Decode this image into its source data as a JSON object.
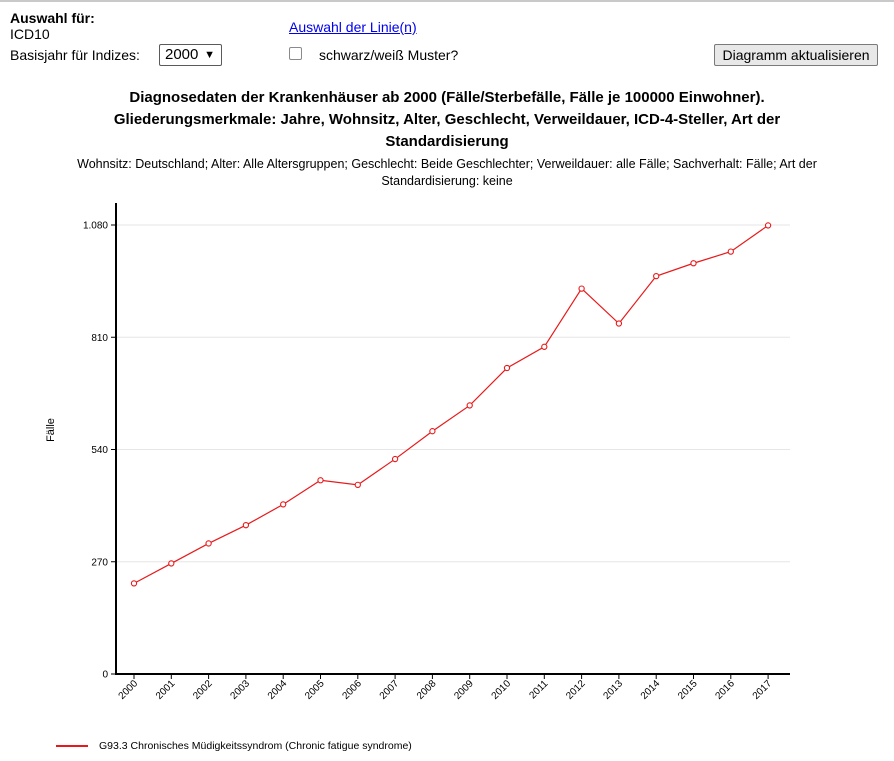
{
  "controls": {
    "selection_label": "Auswahl für:",
    "selection_value": "ICD10",
    "base_year_label": "Basisjahr für Indizes:",
    "base_year_value": "2000",
    "lines_link": "Auswahl der Linie(n)",
    "bw_pattern_label": "schwarz/weiß Muster?",
    "update_button": "Diagramm aktualisieren"
  },
  "colors": {
    "series": "#e8191a",
    "grid": "#e6e6e6",
    "axis": "#000000"
  },
  "chart_data": {
    "type": "line",
    "title": "Diagnosedaten der Krankenhäuser ab 2000 (Fälle/Sterbefälle, Fälle je 100000 Einwohner). Gliederungsmerkmale: Jahre, Wohnsitz, Alter, Geschlecht, Verweildauer, ICD-4-Steller, Art der Standardisierung",
    "subtitle": "Wohnsitz: Deutschland; Alter: Alle Altersgruppen; Geschlecht: Beide Geschlechter; Verweildauer: alle Fälle; Sachverhalt: Fälle; Art der Standardisierung: keine",
    "ylabel": "Fälle",
    "xlabel": "",
    "categories": [
      "2000",
      "2001",
      "2002",
      "2003",
      "2004",
      "2005",
      "2006",
      "2007",
      "2008",
      "2009",
      "2010",
      "2011",
      "2012",
      "2013",
      "2014",
      "2015",
      "2016",
      "2017"
    ],
    "series": [
      {
        "name": "G93.3 Chronisches Müdigkeitssyndrom (Chronic fatigue syndrome)",
        "values": [
          218,
          266,
          314,
          358,
          408,
          466,
          455,
          517,
          584,
          646,
          736,
          787,
          927,
          843,
          957,
          988,
          1016,
          1079
        ]
      }
    ],
    "ylim": [
      0,
      1080
    ],
    "yticks": [
      0,
      270,
      540,
      810,
      1080
    ],
    "ytick_labels": [
      "0",
      "270",
      "540",
      "810",
      "1.080"
    ],
    "grid": true,
    "legend": "bottom-left"
  }
}
